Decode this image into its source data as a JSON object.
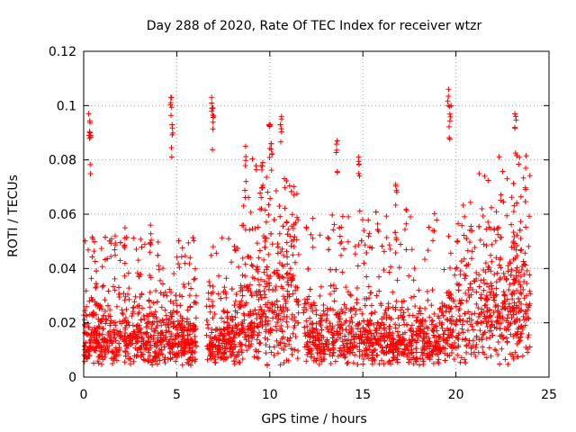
{
  "chart_data": {
    "type": "scatter",
    "title": "Day 288 of 2020, Rate Of TEC Index for receiver wtzr",
    "xlabel": "GPS time / hours",
    "ylabel": "ROTI / TECUs",
    "xlim": [
      0,
      25
    ],
    "ylim": [
      0,
      0.12
    ],
    "grid": true,
    "marker": "+",
    "series_color": "#ff0000",
    "x_ticks": [
      "0",
      "5",
      "10",
      "15",
      "20",
      "25"
    ],
    "x_tick_values": [
      0,
      5,
      10,
      15,
      20,
      25
    ],
    "y_ticks": [
      "0",
      "0.02",
      "0.04",
      "0.06",
      "0.08",
      "0.1",
      "0.12"
    ],
    "y_tick_values": [
      0,
      0.02,
      0.04,
      0.06,
      0.08,
      0.1,
      0.12
    ],
    "density_profile": {
      "description_hours": [
        0,
        8.3,
        9.0,
        11.3,
        12.0,
        19.5,
        20.5,
        24
      ],
      "typical_roti": [
        0.015,
        0.015,
        0.035,
        0.035,
        0.015,
        0.015,
        0.03,
        0.035
      ],
      "upper_envelope": [
        0.05,
        0.05,
        0.085,
        0.075,
        0.06,
        0.06,
        0.08,
        0.08
      ]
    },
    "peaks": [
      {
        "x": 0.3,
        "y": 0.097
      },
      {
        "x": 0.35,
        "y": 0.09
      },
      {
        "x": 4.7,
        "y": 0.103
      },
      {
        "x": 4.75,
        "y": 0.093
      },
      {
        "x": 6.9,
        "y": 0.103
      },
      {
        "x": 6.95,
        "y": 0.099
      },
      {
        "x": 10.0,
        "y": 0.093
      },
      {
        "x": 10.1,
        "y": 0.086
      },
      {
        "x": 10.6,
        "y": 0.096
      },
      {
        "x": 13.6,
        "y": 0.087
      },
      {
        "x": 19.6,
        "y": 0.106
      },
      {
        "x": 19.7,
        "y": 0.1
      },
      {
        "x": 23.2,
        "y": 0.097
      },
      {
        "x": 2.2,
        "y": 0.055
      },
      {
        "x": 1.7,
        "y": 0.052
      },
      {
        "x": 16.8,
        "y": 0.071
      },
      {
        "x": 14.8,
        "y": 0.081
      },
      {
        "x": 3.6,
        "y": 0.056
      },
      {
        "x": 8.7,
        "y": 0.085
      },
      {
        "x": 9.6,
        "y": 0.079
      }
    ]
  }
}
